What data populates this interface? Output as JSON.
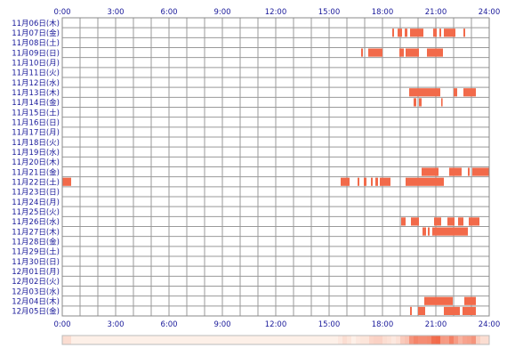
{
  "chart_data": {
    "type": "heatmap",
    "title": "",
    "xlabel": "",
    "ylabel": "",
    "xlim": [
      0,
      24
    ],
    "x_ticks": [
      "0:00",
      "3:00",
      "6:00",
      "9:00",
      "12:00",
      "15:00",
      "18:00",
      "21:00",
      "24:00"
    ],
    "rows": [
      {
        "label": "11月06日(木)",
        "intervals": []
      },
      {
        "label": "11月07日(金)",
        "intervals": [
          [
            18.55,
            18.65
          ],
          [
            18.85,
            19.1
          ],
          [
            19.25,
            19.4
          ],
          [
            19.55,
            20.3
          ],
          [
            20.85,
            21.05
          ],
          [
            21.2,
            21.3
          ],
          [
            21.45,
            22.1
          ],
          [
            22.55,
            22.65
          ]
        ]
      },
      {
        "label": "11月08日(土)",
        "intervals": []
      },
      {
        "label": "11月09日(日)",
        "intervals": [
          [
            16.8,
            16.9
          ],
          [
            17.2,
            18.0
          ],
          [
            18.95,
            19.2
          ],
          [
            19.3,
            20.05
          ],
          [
            20.5,
            21.4
          ]
        ]
      },
      {
        "label": "11月10日(月)",
        "intervals": []
      },
      {
        "label": "11月11日(火)",
        "intervals": []
      },
      {
        "label": "11月12日(水)",
        "intervals": []
      },
      {
        "label": "11月13日(木)",
        "intervals": [
          [
            19.5,
            21.25
          ],
          [
            22.0,
            22.2
          ],
          [
            22.55,
            23.25
          ]
        ]
      },
      {
        "label": "11月14日(金)",
        "intervals": [
          [
            19.75,
            19.9
          ],
          [
            20.05,
            20.2
          ],
          [
            21.3,
            21.38
          ]
        ]
      },
      {
        "label": "11月15日(土)",
        "intervals": []
      },
      {
        "label": "11月16日(日)",
        "intervals": []
      },
      {
        "label": "11月17日(月)",
        "intervals": []
      },
      {
        "label": "11月18日(火)",
        "intervals": []
      },
      {
        "label": "11月19日(水)",
        "intervals": []
      },
      {
        "label": "11月20日(木)",
        "intervals": []
      },
      {
        "label": "11月21日(金)",
        "intervals": [
          [
            20.2,
            21.15
          ],
          [
            21.75,
            22.45
          ],
          [
            22.8,
            22.9
          ],
          [
            23.05,
            24.0
          ]
        ]
      },
      {
        "label": "11月22日(土)",
        "intervals": [
          [
            0.0,
            0.5
          ],
          [
            15.65,
            16.15
          ],
          [
            16.6,
            16.7
          ],
          [
            16.95,
            17.1
          ],
          [
            17.35,
            17.45
          ],
          [
            17.6,
            17.75
          ],
          [
            17.85,
            18.45
          ],
          [
            19.3,
            21.45
          ]
        ]
      },
      {
        "label": "11月23日(日)",
        "intervals": []
      },
      {
        "label": "11月24日(月)",
        "intervals": []
      },
      {
        "label": "11月25日(火)",
        "intervals": []
      },
      {
        "label": "11月26日(水)",
        "intervals": [
          [
            19.05,
            19.3
          ],
          [
            19.6,
            20.05
          ],
          [
            20.9,
            21.3
          ],
          [
            21.65,
            22.05
          ],
          [
            22.25,
            22.55
          ],
          [
            22.85,
            23.45
          ]
        ]
      },
      {
        "label": "11月27日(木)",
        "intervals": [
          [
            20.25,
            20.45
          ],
          [
            20.55,
            20.65
          ],
          [
            20.8,
            22.8
          ]
        ]
      },
      {
        "label": "11月28日(金)",
        "intervals": []
      },
      {
        "label": "11月29日(土)",
        "intervals": []
      },
      {
        "label": "11月30日(日)",
        "intervals": []
      },
      {
        "label": "12月01日(月)",
        "intervals": []
      },
      {
        "label": "12月02日(火)",
        "intervals": []
      },
      {
        "label": "12月03日(水)",
        "intervals": []
      },
      {
        "label": "12月04日(木)",
        "intervals": [
          [
            20.35,
            21.95
          ],
          [
            22.6,
            23.25
          ]
        ]
      },
      {
        "label": "12月05日(金)",
        "intervals": [
          [
            19.55,
            19.65
          ],
          [
            20.0,
            20.4
          ],
          [
            21.45,
            22.35
          ],
          [
            22.5,
            23.25
          ]
        ]
      }
    ],
    "grid": true,
    "legend": "none",
    "colors": {
      "bar": "#f26a4a",
      "bar_edge": "#ee4f33",
      "grid": "#999999",
      "frame": "#888888",
      "label": "#1a1a9a",
      "heat_low": "#fdf0e8",
      "heat_high": "#f26a4a"
    }
  }
}
